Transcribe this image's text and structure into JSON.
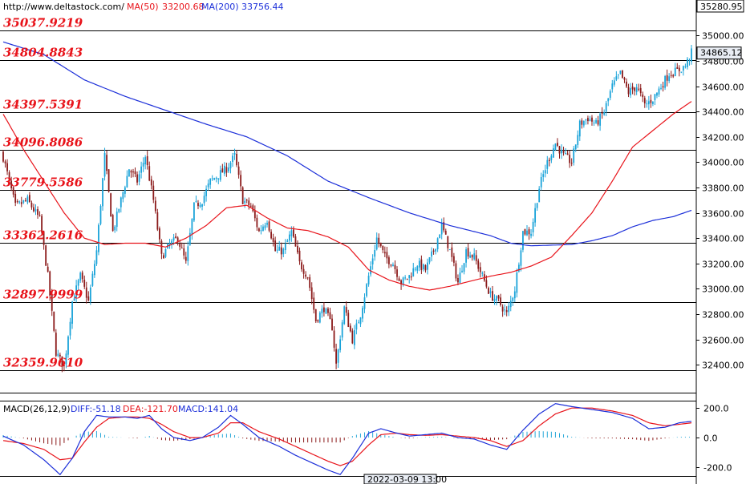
{
  "header": {
    "source": "http://www.deltastock.com/",
    "ma50_label": "MA(50)",
    "ma50_value": "33200.68",
    "ma200_label": "MA(200)",
    "ma200_value": "33756.44"
  },
  "macd_header": {
    "label": "MACD(26,12,9)",
    "diff": "DIFF:-51.18",
    "dea": "DEA:-121.70",
    "macd": "MACD:141.04"
  },
  "axis": {
    "top_value": "35280.95",
    "last_price": "34865.12",
    "time_label": "2022-03-09 13:00"
  },
  "colors": {
    "up": "#1aa3d9",
    "down": "#8b1a1a",
    "ma50": "#e8141b",
    "ma200": "#1c2fd9",
    "levels": "#e8141b",
    "macd_up": "#27a8d8",
    "macd_down": "#8b1a1a"
  },
  "chart_data": [
    {
      "type": "candlestick",
      "ylim": [
        32180,
        35281
      ],
      "y_ticks": [
        32400,
        32600,
        32800,
        33000,
        33200,
        33400,
        33600,
        33800,
        34000,
        34200,
        34400,
        34600,
        34800,
        35000
      ],
      "levels": [
        {
          "value": 35037.9219,
          "label": "35037.9219"
        },
        {
          "value": 34804.8843,
          "label": "34804.8843"
        },
        {
          "value": 34397.5391,
          "label": "34397.5391"
        },
        {
          "value": 34096.8086,
          "label": "34096.8086"
        },
        {
          "value": 33779.5586,
          "label": "33779.5586"
        },
        {
          "value": 33362.2616,
          "label": "33362.2616"
        },
        {
          "value": 32897.9999,
          "label": "32897.9999"
        },
        {
          "value": 32359.961,
          "label": "32359.9610"
        }
      ],
      "close_anchors": [
        [
          0,
          34040
        ],
        [
          6,
          33650
        ],
        [
          12,
          33700
        ],
        [
          18,
          33550
        ],
        [
          22,
          33100
        ],
        [
          26,
          32500
        ],
        [
          30,
          32380
        ],
        [
          34,
          32900
        ],
        [
          38,
          33100
        ],
        [
          42,
          32900
        ],
        [
          46,
          33300
        ],
        [
          50,
          34050
        ],
        [
          54,
          33450
        ],
        [
          58,
          33700
        ],
        [
          62,
          33950
        ],
        [
          66,
          33850
        ],
        [
          70,
          34050
        ],
        [
          74,
          33700
        ],
        [
          78,
          33250
        ],
        [
          82,
          33350
        ],
        [
          86,
          33400
        ],
        [
          90,
          33200
        ],
        [
          94,
          33650
        ],
        [
          98,
          33700
        ],
        [
          102,
          33850
        ],
        [
          106,
          33900
        ],
        [
          110,
          33950
        ],
        [
          114,
          34050
        ],
        [
          118,
          33700
        ],
        [
          122,
          33650
        ],
        [
          126,
          33450
        ],
        [
          130,
          33550
        ],
        [
          134,
          33300
        ],
        [
          138,
          33300
        ],
        [
          142,
          33450
        ],
        [
          146,
          33200
        ],
        [
          150,
          33100
        ],
        [
          154,
          32750
        ],
        [
          158,
          32850
        ],
        [
          162,
          32700
        ],
        [
          164,
          32400
        ],
        [
          168,
          32850
        ],
        [
          172,
          32600
        ],
        [
          176,
          32800
        ],
        [
          180,
          33100
        ],
        [
          184,
          33400
        ],
        [
          188,
          33250
        ],
        [
          192,
          33200
        ],
        [
          196,
          33050
        ],
        [
          200,
          33100
        ],
        [
          204,
          33200
        ],
        [
          208,
          33150
        ],
        [
          212,
          33300
        ],
        [
          216,
          33500
        ],
        [
          220,
          33300
        ],
        [
          224,
          33050
        ],
        [
          228,
          33300
        ],
        [
          232,
          33250
        ],
        [
          236,
          33100
        ],
        [
          240,
          32950
        ],
        [
          244,
          32900
        ],
        [
          248,
          32800
        ],
        [
          252,
          33000
        ],
        [
          256,
          33450
        ],
        [
          260,
          33450
        ],
        [
          264,
          33800
        ],
        [
          268,
          34000
        ],
        [
          272,
          34150
        ],
        [
          276,
          34050
        ],
        [
          280,
          34000
        ],
        [
          284,
          34300
        ],
        [
          288,
          34350
        ],
        [
          292,
          34300
        ],
        [
          296,
          34400
        ],
        [
          300,
          34600
        ],
        [
          304,
          34700
        ],
        [
          308,
          34550
        ],
        [
          312,
          34600
        ],
        [
          316,
          34450
        ],
        [
          320,
          34500
        ],
        [
          324,
          34600
        ],
        [
          328,
          34700
        ],
        [
          332,
          34720
        ],
        [
          336,
          34760
        ],
        [
          339,
          34865.12
        ]
      ],
      "ma50_anchors": [
        [
          0,
          34380
        ],
        [
          10,
          34100
        ],
        [
          20,
          33850
        ],
        [
          30,
          33600
        ],
        [
          40,
          33400
        ],
        [
          50,
          33350
        ],
        [
          60,
          33360
        ],
        [
          70,
          33360
        ],
        [
          80,
          33330
        ],
        [
          90,
          33400
        ],
        [
          100,
          33500
        ],
        [
          110,
          33640
        ],
        [
          120,
          33660
        ],
        [
          130,
          33560
        ],
        [
          140,
          33480
        ],
        [
          150,
          33460
        ],
        [
          160,
          33410
        ],
        [
          170,
          33330
        ],
        [
          180,
          33150
        ],
        [
          190,
          33070
        ],
        [
          200,
          33020
        ],
        [
          210,
          32990
        ],
        [
          220,
          33020
        ],
        [
          230,
          33060
        ],
        [
          240,
          33100
        ],
        [
          250,
          33130
        ],
        [
          260,
          33180
        ],
        [
          270,
          33250
        ],
        [
          280,
          33420
        ],
        [
          290,
          33600
        ],
        [
          300,
          33850
        ],
        [
          310,
          34120
        ],
        [
          320,
          34250
        ],
        [
          330,
          34380
        ],
        [
          339,
          34480
        ]
      ],
      "ma200_anchors": [
        [
          0,
          34950
        ],
        [
          20,
          34850
        ],
        [
          40,
          34650
        ],
        [
          60,
          34520
        ],
        [
          80,
          34410
        ],
        [
          100,
          34300
        ],
        [
          120,
          34200
        ],
        [
          140,
          34050
        ],
        [
          160,
          33850
        ],
        [
          180,
          33720
        ],
        [
          200,
          33600
        ],
        [
          220,
          33500
        ],
        [
          240,
          33420
        ],
        [
          250,
          33360
        ],
        [
          260,
          33340
        ],
        [
          270,
          33345
        ],
        [
          280,
          33350
        ],
        [
          290,
          33380
        ],
        [
          300,
          33420
        ],
        [
          310,
          33490
        ],
        [
          320,
          33540
        ],
        [
          330,
          33570
        ],
        [
          339,
          33620
        ]
      ]
    },
    {
      "type": "macd",
      "ylim": [
        -260,
        250
      ],
      "y_ticks": [
        -200,
        0,
        200
      ],
      "y_tick_labels": [
        "-200.0",
        "0.0",
        "200.0"
      ],
      "diff_anchors": [
        [
          0,
          10
        ],
        [
          10,
          -50
        ],
        [
          20,
          -150
        ],
        [
          28,
          -250
        ],
        [
          34,
          -140
        ],
        [
          40,
          40
        ],
        [
          46,
          150
        ],
        [
          52,
          140
        ],
        [
          60,
          140
        ],
        [
          66,
          130
        ],
        [
          72,
          150
        ],
        [
          78,
          60
        ],
        [
          84,
          0
        ],
        [
          92,
          -20
        ],
        [
          98,
          0
        ],
        [
          106,
          70
        ],
        [
          112,
          150
        ],
        [
          118,
          90
        ],
        [
          126,
          0
        ],
        [
          136,
          -60
        ],
        [
          144,
          -120
        ],
        [
          152,
          -170
        ],
        [
          160,
          -220
        ],
        [
          166,
          -250
        ],
        [
          172,
          -140
        ],
        [
          180,
          30
        ],
        [
          186,
          60
        ],
        [
          194,
          30
        ],
        [
          200,
          10
        ],
        [
          208,
          20
        ],
        [
          216,
          30
        ],
        [
          224,
          0
        ],
        [
          232,
          -10
        ],
        [
          240,
          -50
        ],
        [
          248,
          -80
        ],
        [
          256,
          50
        ],
        [
          264,
          160
        ],
        [
          272,
          230
        ],
        [
          280,
          210
        ],
        [
          290,
          190
        ],
        [
          300,
          170
        ],
        [
          310,
          130
        ],
        [
          318,
          60
        ],
        [
          326,
          70
        ],
        [
          333,
          100
        ],
        [
          339,
          110
        ]
      ],
      "dea_anchors": [
        [
          0,
          -20
        ],
        [
          10,
          -40
        ],
        [
          20,
          -80
        ],
        [
          28,
          -150
        ],
        [
          34,
          -140
        ],
        [
          40,
          -30
        ],
        [
          46,
          70
        ],
        [
          52,
          130
        ],
        [
          60,
          140
        ],
        [
          66,
          140
        ],
        [
          72,
          130
        ],
        [
          78,
          90
        ],
        [
          84,
          40
        ],
        [
          92,
          0
        ],
        [
          98,
          0
        ],
        [
          106,
          30
        ],
        [
          112,
          100
        ],
        [
          118,
          100
        ],
        [
          126,
          40
        ],
        [
          136,
          -10
        ],
        [
          144,
          -60
        ],
        [
          152,
          -110
        ],
        [
          160,
          -160
        ],
        [
          166,
          -190
        ],
        [
          172,
          -160
        ],
        [
          180,
          -50
        ],
        [
          186,
          20
        ],
        [
          194,
          30
        ],
        [
          200,
          20
        ],
        [
          208,
          15
        ],
        [
          216,
          20
        ],
        [
          224,
          10
        ],
        [
          232,
          0
        ],
        [
          240,
          -20
        ],
        [
          248,
          -60
        ],
        [
          256,
          -20
        ],
        [
          264,
          80
        ],
        [
          272,
          160
        ],
        [
          280,
          200
        ],
        [
          290,
          200
        ],
        [
          300,
          180
        ],
        [
          310,
          150
        ],
        [
          318,
          100
        ],
        [
          326,
          80
        ],
        [
          333,
          90
        ],
        [
          339,
          100
        ]
      ]
    }
  ]
}
